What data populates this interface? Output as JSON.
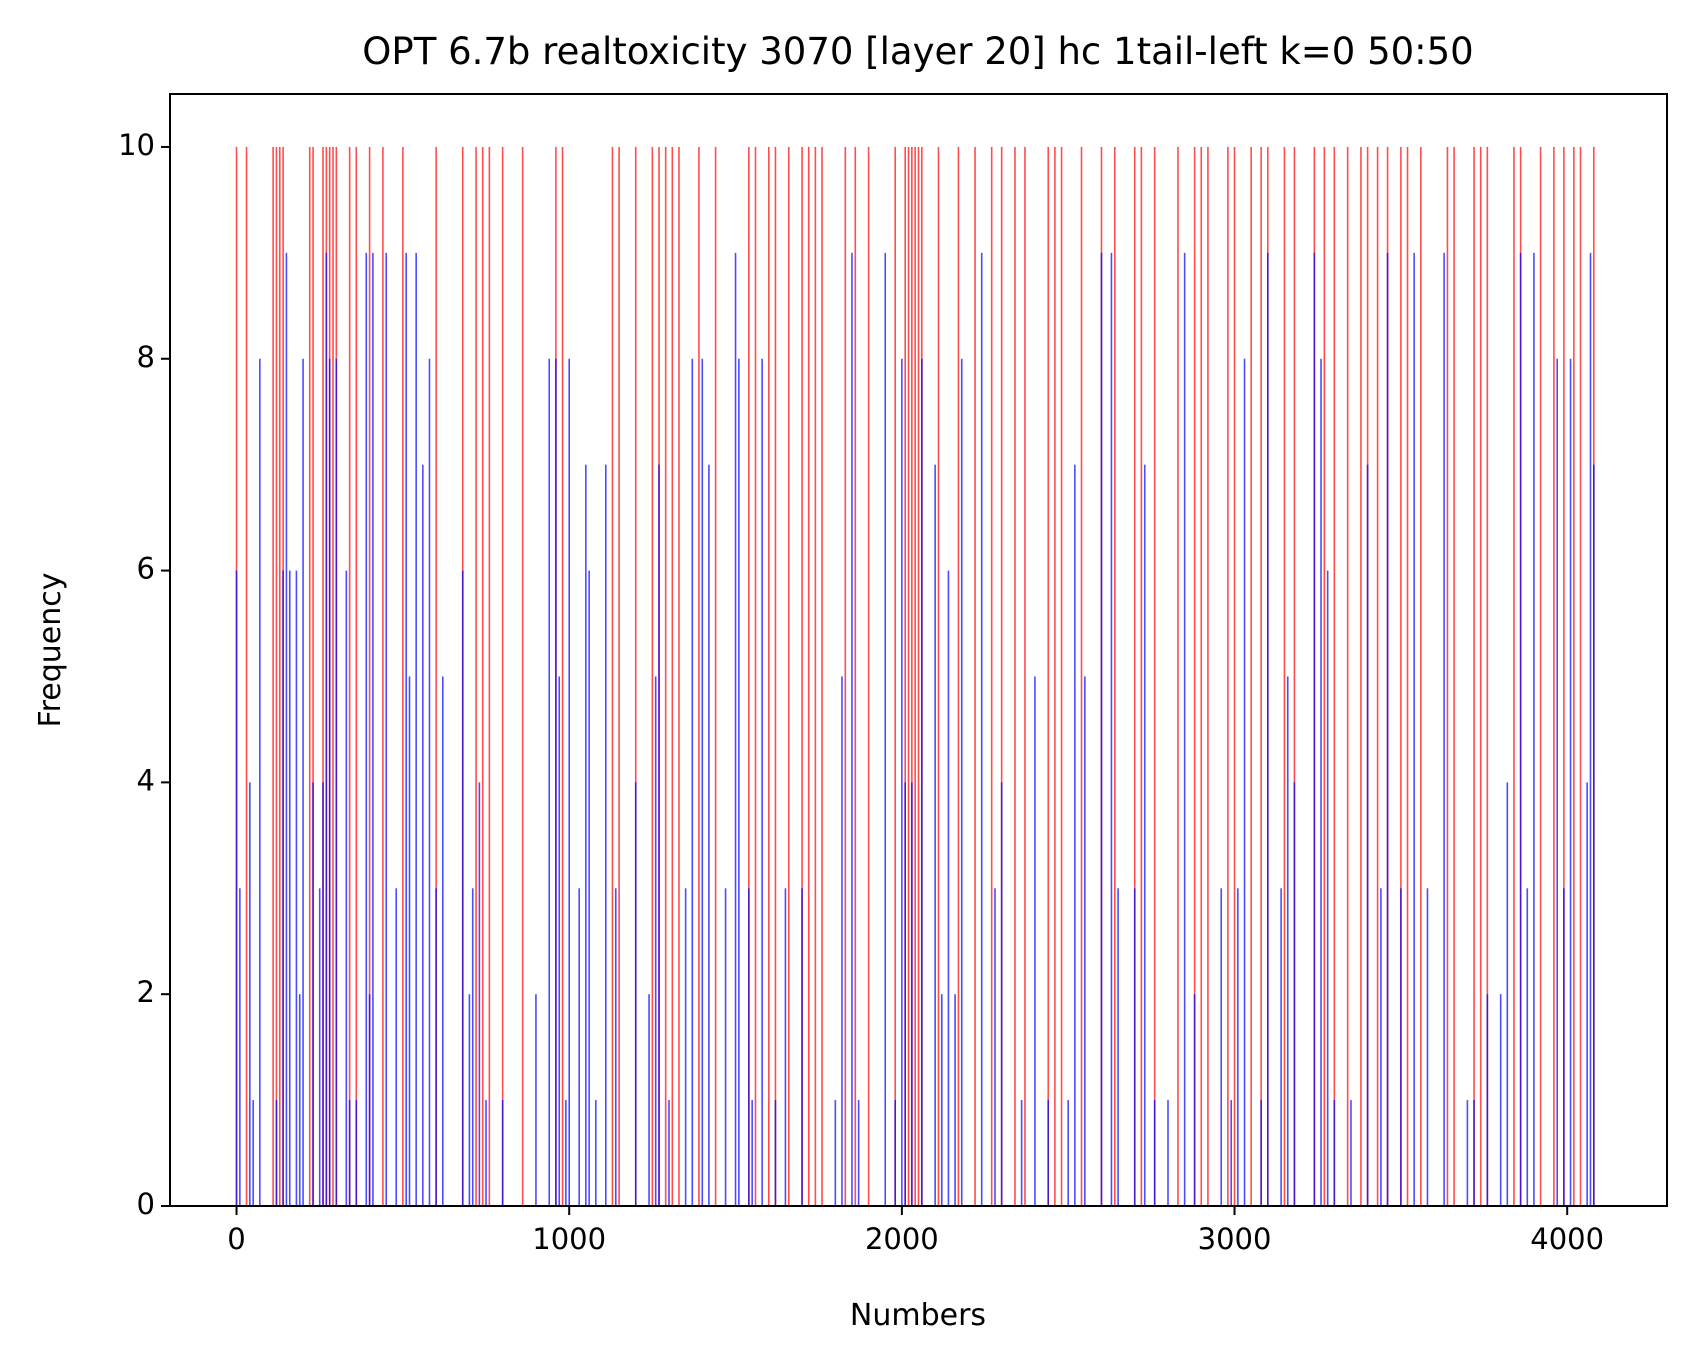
{
  "chart_data": {
    "type": "bar",
    "title": "OPT 6.7b realtoxicity 3070 [layer 20] hc 1tail-left k=0 50:50",
    "xlabel": "Numbers",
    "ylabel": "Frequency",
    "xlim": [
      -200,
      4300
    ],
    "ylim": [
      0,
      10.5
    ],
    "xticks": [
      0,
      1000,
      2000,
      3000,
      4000
    ],
    "yticks": [
      0,
      2,
      4,
      6,
      8,
      10
    ],
    "grid": false,
    "series": [
      {
        "color": "#ff0000",
        "x": [
          0,
          30,
          110,
          120,
          130,
          140,
          220,
          230,
          260,
          270,
          280,
          290,
          300,
          340,
          360,
          400,
          440,
          500,
          600,
          680,
          720,
          740,
          760,
          800,
          860,
          960,
          980,
          1130,
          1150,
          1200,
          1250,
          1270,
          1290,
          1310,
          1330,
          1390,
          1440,
          1540,
          1560,
          1600,
          1620,
          1660,
          1700,
          1720,
          1740,
          1760,
          1830,
          1860,
          1900,
          1980,
          2010,
          2020,
          2030,
          2040,
          2050,
          2060,
          2110,
          2170,
          2220,
          2270,
          2300,
          2340,
          2370,
          2440,
          2460,
          2480,
          2540,
          2600,
          2640,
          2700,
          2720,
          2760,
          2830,
          2880,
          2900,
          2920,
          2980,
          3000,
          3050,
          3080,
          3100,
          3150,
          3180,
          3240,
          3270,
          3300,
          3340,
          3380,
          3400,
          3430,
          3460,
          3500,
          3520,
          3560,
          3640,
          3660,
          3720,
          3740,
          3760,
          3840,
          3860,
          3920,
          3960,
          3990,
          4020,
          4040,
          4080
        ],
        "values": [
          10,
          10,
          10,
          10,
          10,
          10,
          10,
          10,
          10,
          10,
          10,
          10,
          10,
          10,
          10,
          10,
          10,
          10,
          10,
          10,
          10,
          10,
          10,
          10,
          10,
          10,
          10,
          10,
          10,
          10,
          10,
          10,
          10,
          10,
          10,
          10,
          10,
          10,
          10,
          10,
          10,
          10,
          10,
          10,
          10,
          10,
          10,
          10,
          10,
          10,
          10,
          10,
          10,
          10,
          10,
          10,
          10,
          10,
          10,
          10,
          10,
          10,
          10,
          10,
          10,
          10,
          10,
          10,
          10,
          10,
          10,
          10,
          10,
          10,
          10,
          10,
          10,
          10,
          10,
          10,
          10,
          10,
          10,
          10,
          10,
          10,
          10,
          10,
          10,
          10,
          10,
          10,
          10,
          10,
          10,
          10,
          10,
          10,
          10,
          10,
          10,
          10,
          10,
          10,
          10,
          10,
          10
        ]
      },
      {
        "color": "#0000ff",
        "x": [
          0,
          10,
          40,
          50,
          70,
          120,
          140,
          150,
          160,
          180,
          190,
          200,
          230,
          250,
          260,
          270,
          280,
          300,
          330,
          340,
          360,
          390,
          400,
          410,
          450,
          480,
          510,
          520,
          540,
          560,
          580,
          600,
          620,
          680,
          700,
          710,
          730,
          750,
          800,
          900,
          940,
          960,
          970,
          990,
          1000,
          1030,
          1050,
          1060,
          1080,
          1110,
          1140,
          1200,
          1240,
          1260,
          1270,
          1300,
          1350,
          1370,
          1400,
          1420,
          1470,
          1500,
          1510,
          1540,
          1550,
          1580,
          1620,
          1650,
          1700,
          1800,
          1820,
          1850,
          1870,
          1950,
          1980,
          2000,
          2010,
          2030,
          2060,
          2100,
          2120,
          2140,
          2160,
          2180,
          2240,
          2280,
          2300,
          2360,
          2400,
          2440,
          2500,
          2520,
          2550,
          2600,
          2630,
          2650,
          2700,
          2730,
          2760,
          2800,
          2850,
          2880,
          2960,
          2990,
          3010,
          3030,
          3080,
          3100,
          3140,
          3160,
          3180,
          3240,
          3260,
          3280,
          3300,
          3350,
          3400,
          3440,
          3460,
          3500,
          3540,
          3580,
          3630,
          3700,
          3720,
          3760,
          3800,
          3820,
          3860,
          3880,
          3900,
          3970,
          3990,
          4010,
          4060,
          4070,
          4080
        ],
        "values": [
          6,
          3,
          4,
          1,
          8,
          1,
          6,
          9,
          6,
          6,
          2,
          8,
          4,
          3,
          4,
          9,
          8,
          8,
          6,
          1,
          1,
          9,
          2,
          9,
          9,
          3,
          9,
          5,
          9,
          7,
          8,
          3,
          5,
          6,
          2,
          3,
          4,
          1,
          1,
          2,
          8,
          8,
          5,
          1,
          8,
          3,
          7,
          6,
          1,
          7,
          3,
          4,
          2,
          5,
          7,
          1,
          3,
          8,
          8,
          7,
          3,
          9,
          8,
          3,
          1,
          8,
          1,
          3,
          3,
          1,
          5,
          9,
          1,
          9,
          1,
          8,
          4,
          4,
          8,
          7,
          2,
          6,
          2,
          8,
          9,
          3,
          4,
          1,
          5,
          1,
          1,
          7,
          5,
          9,
          9,
          3,
          3,
          7,
          1,
          1,
          9,
          2,
          3,
          1,
          3,
          8,
          1,
          9,
          3,
          5,
          4,
          9,
          8,
          6,
          1,
          1,
          7,
          3,
          9,
          3,
          9,
          3,
          9,
          1,
          1,
          2,
          2,
          4,
          9,
          3,
          9,
          8,
          3,
          8,
          4,
          9,
          7
        ]
      }
    ]
  }
}
